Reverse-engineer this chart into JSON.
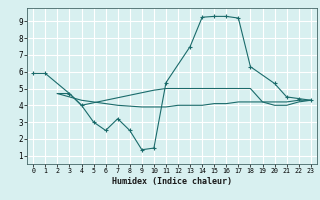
{
  "xlabel": "Humidex (Indice chaleur)",
  "ylabel": "",
  "xlim": [
    -0.5,
    23.5
  ],
  "ylim": [
    0.5,
    9.8
  ],
  "bg_color": "#d8f0f0",
  "grid_color": "#ffffff",
  "line_color": "#1a6b6b",
  "line1_x": [
    0,
    1,
    3,
    4,
    5,
    6,
    7,
    8,
    9,
    10,
    11,
    13,
    14,
    15,
    16,
    17,
    18,
    20,
    21,
    22,
    23
  ],
  "line1_y": [
    5.9,
    5.9,
    4.7,
    4.0,
    3.0,
    2.5,
    3.2,
    2.5,
    1.35,
    1.45,
    5.35,
    7.5,
    9.25,
    9.3,
    9.3,
    9.2,
    6.3,
    5.3,
    4.5,
    4.4,
    4.3
  ],
  "line2_x": [
    2,
    3,
    4,
    10,
    11,
    12,
    13,
    14,
    15,
    16,
    17,
    18,
    19,
    20,
    21,
    22,
    23
  ],
  "line2_y": [
    4.7,
    4.7,
    4.0,
    4.9,
    5.0,
    5.0,
    5.0,
    5.0,
    5.0,
    5.0,
    5.0,
    5.0,
    4.2,
    4.2,
    4.2,
    4.3,
    4.3
  ],
  "line3_x": [
    2,
    3,
    4,
    5,
    6,
    7,
    8,
    9,
    10,
    11,
    12,
    13,
    14,
    15,
    16,
    17,
    18,
    19,
    20,
    21,
    22,
    23
  ],
  "line3_y": [
    4.7,
    4.5,
    4.3,
    4.2,
    4.1,
    4.0,
    3.95,
    3.9,
    3.9,
    3.9,
    4.0,
    4.0,
    4.0,
    4.1,
    4.1,
    4.2,
    4.2,
    4.2,
    4.0,
    4.0,
    4.2,
    4.3
  ],
  "xticks": [
    0,
    1,
    2,
    3,
    4,
    5,
    6,
    7,
    8,
    9,
    10,
    11,
    12,
    13,
    14,
    15,
    16,
    17,
    18,
    19,
    20,
    21,
    22,
    23
  ],
  "yticks": [
    1,
    2,
    3,
    4,
    5,
    6,
    7,
    8,
    9
  ]
}
